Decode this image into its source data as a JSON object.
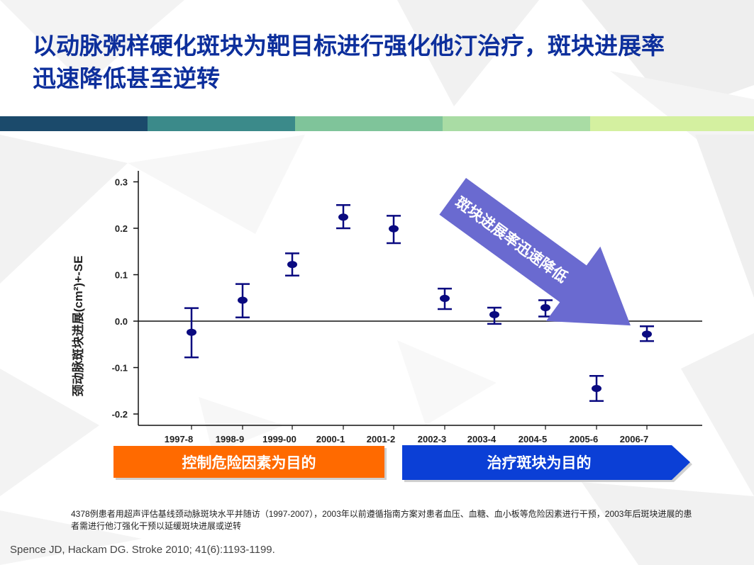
{
  "title": "以动脉粥样硬化斑块为靶目标进行强化他汀治疗，斑块进展率迅速降低甚至逆转",
  "colors": {
    "title": "#0d2f9c",
    "bands": [
      "#1b4a6b",
      "#3b8a8a",
      "#7fc49a",
      "#a9dca4",
      "#d4f0a0"
    ],
    "marker": "#0a0a80",
    "phase_left": "#ff6a00",
    "phase_right": "#0b3fd6",
    "trend_arrow": "#6a6ad0"
  },
  "chart_data": {
    "type": "scatter",
    "error_bars": true,
    "categories": [
      "1997-8",
      "1998-9",
      "1999-00",
      "2000-1",
      "2001-2",
      "2002-3",
      "2003-4",
      "2004-5",
      "2005-6",
      "2006-7"
    ],
    "values": [
      -0.024,
      0.045,
      0.122,
      0.224,
      0.199,
      0.049,
      0.014,
      0.029,
      -0.145,
      -0.028
    ],
    "upper": [
      0.028,
      0.08,
      0.146,
      0.25,
      0.227,
      0.07,
      0.029,
      0.045,
      -0.118,
      -0.011
    ],
    "lower": [
      -0.078,
      0.008,
      0.098,
      0.2,
      0.168,
      0.026,
      -0.006,
      0.01,
      -0.172,
      -0.043
    ],
    "ylabel": "颈动脉斑块进展(cm²)+-SE",
    "yticks": [
      "0.3",
      "0.2",
      "0.1",
      "0.0",
      "-0.1",
      "-0.2"
    ],
    "ylim": [
      -0.23,
      0.32
    ],
    "grid": false,
    "annotation": "斑块进展率迅速降低",
    "phases": [
      "控制危险因素为目的",
      "治疗斑块为目的"
    ]
  },
  "note": "4378例患者用超声评估基线颈动脉斑块水平并随访（1997-2007），2003年以前遵循指南方案对患者血压、血糖、血小板等危险因素进行干预，2003年后斑块进展的患者需进行他汀强化干预以延缓斑块进展或逆转",
  "reference": "Spence JD, Hackam DG. Stroke 2010; 41(6):1193-1199."
}
